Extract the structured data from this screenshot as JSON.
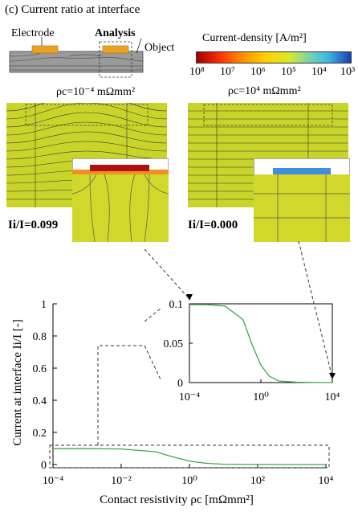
{
  "figure": {
    "title": "(c) Current ratio at interface",
    "schematic": {
      "electrode_label": "Electrode",
      "analysis_label": "Analysis",
      "object_label": "Object"
    },
    "colorbar": {
      "title": "Current-density [A/m²]",
      "ticks": [
        "10⁸",
        "10⁷",
        "10⁶",
        "10⁵",
        "10⁴",
        "10³"
      ],
      "colors": [
        "#a00000",
        "#ff3000",
        "#ffd000",
        "#d8e82a",
        "#3fb8e0",
        "#1a3fb0"
      ]
    },
    "left_case": {
      "rho_label": "ρc=10⁻⁴ mΩmm²",
      "ratio_label": "Ii/I=0.099"
    },
    "right_case": {
      "rho_label": "ρc=10⁴ mΩmm²",
      "ratio_label": "Ii/I=0.000"
    }
  },
  "chart_data": {
    "type": "line",
    "xlabel": "Contact resistivity ρc [mΩmm²]",
    "ylabel": "Current at interface Ii/I [-]",
    "x_scale": "log",
    "xlim": [
      0.0001,
      10000
    ],
    "ylim": [
      0,
      1
    ],
    "x_ticks": [
      "10⁻⁴",
      "10⁻²",
      "10⁰",
      "10²",
      "10⁴"
    ],
    "y_ticks": [
      "0",
      "0.2",
      "0.4",
      "0.6",
      "0.8",
      "1"
    ],
    "series": [
      {
        "color": "#3aa84a",
        "x": [
          0.0001,
          0.001,
          0.01,
          0.1,
          0.3,
          1,
          3,
          10,
          100,
          1000,
          10000
        ],
        "y": [
          0.099,
          0.099,
          0.097,
          0.08,
          0.05,
          0.022,
          0.008,
          0.002,
          0.0005,
          0.0001,
          0.0
        ]
      }
    ],
    "inset": {
      "xlim": [
        0.0001,
        10000
      ],
      "ylim": [
        0,
        0.1
      ],
      "x_ticks": [
        "10⁻⁴",
        "10⁰",
        "10⁴"
      ],
      "y_ticks": [
        "0",
        "0.05",
        "0.1"
      ]
    }
  }
}
